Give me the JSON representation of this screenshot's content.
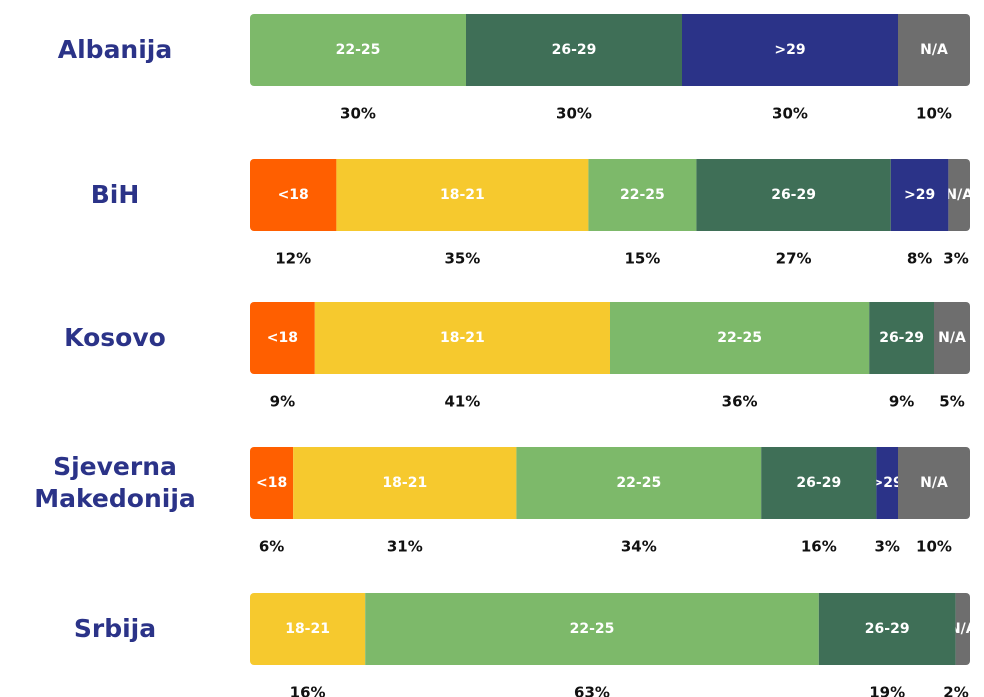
{
  "chart_data": {
    "type": "stacked-bar",
    "orientation": "horizontal",
    "categories": [
      "Albanija",
      "BiH",
      "Kosovo",
      "Sjeverna Makedonija",
      "Srbija"
    ],
    "xlim": [
      0,
      100
    ],
    "series": [
      {
        "name": "<18",
        "color": "#ff5f00",
        "values": [
          null,
          12,
          9,
          6,
          null
        ],
        "value_labels": [
          null,
          "12%",
          "9%",
          "6%",
          null
        ]
      },
      {
        "name": "18-21",
        "color": "#f6c92e",
        "values": [
          null,
          35,
          41,
          31,
          16
        ],
        "value_labels": [
          null,
          "35%",
          "41%",
          "31%",
          "16%"
        ]
      },
      {
        "name": "22-25",
        "color": "#7db96a",
        "values": [
          30,
          15,
          36,
          34,
          63
        ],
        "value_labels": [
          "30%",
          "15%",
          "36%",
          "34%",
          "63%"
        ]
      },
      {
        "name": "26-29",
        "color": "#3f6f57",
        "values": [
          30,
          27,
          9,
          16,
          19
        ],
        "value_labels": [
          "30%",
          "27%",
          "9%",
          "16%",
          "19%"
        ]
      },
      {
        "name": ">29",
        "color": "#2b3388",
        "values": [
          30,
          8,
          null,
          3,
          null
        ],
        "value_labels": [
          "30%",
          "8%",
          null,
          "3%",
          null
        ]
      },
      {
        "name": "N/A",
        "color": "#6e6e6e",
        "values": [
          10,
          3,
          5,
          10,
          2
        ],
        "value_labels": [
          "10%",
          "3%",
          "5%",
          "10%",
          "2%"
        ]
      }
    ]
  }
}
